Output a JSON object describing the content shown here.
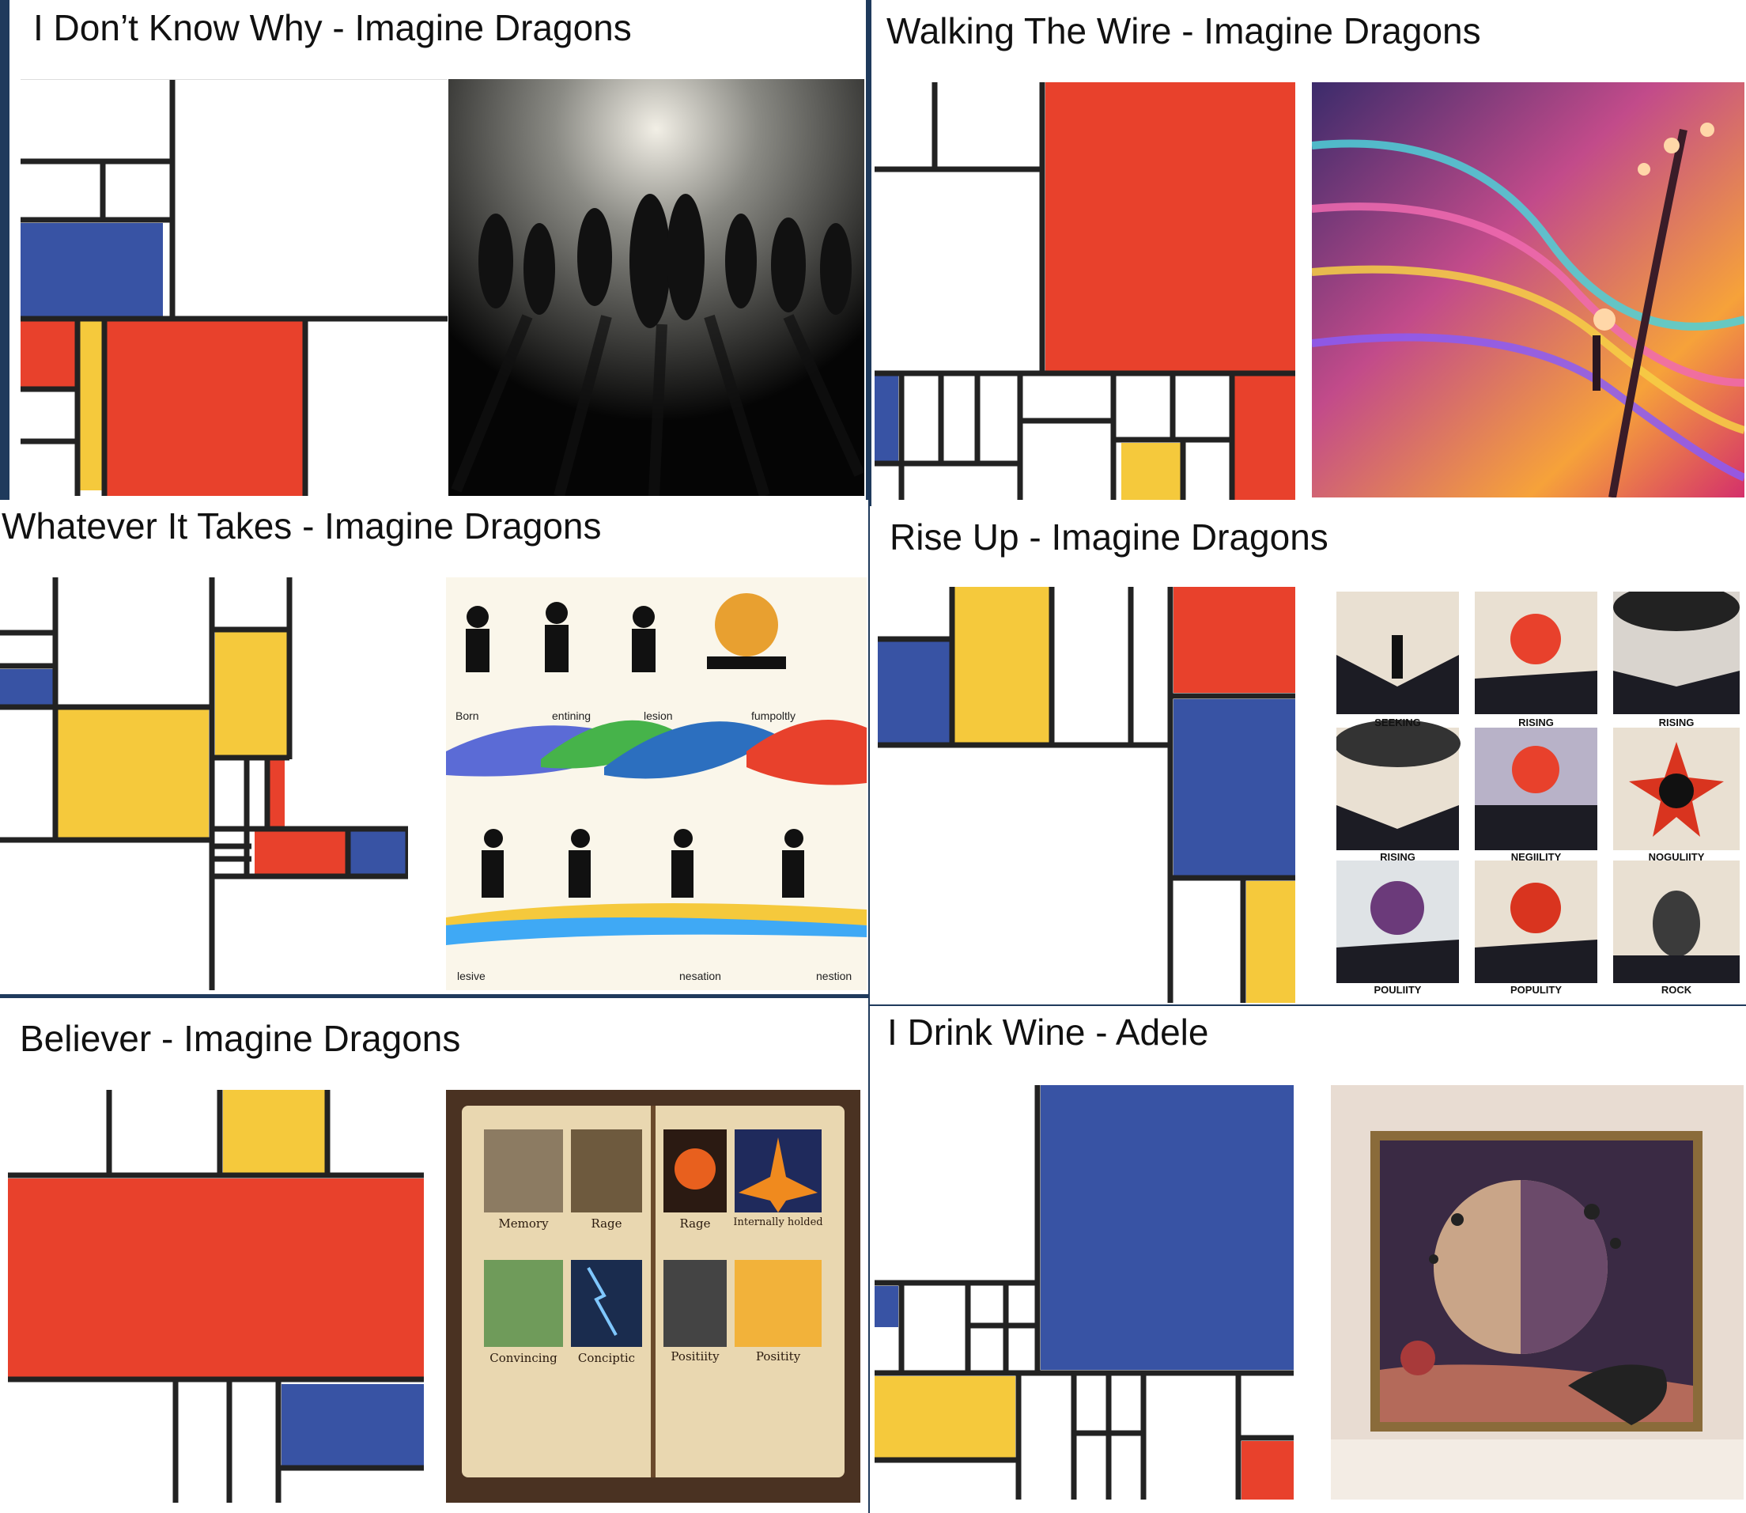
{
  "colors": {
    "red": "#e8412c",
    "blue": "#3853a4",
    "yellow": "#f5c93c",
    "white": "#ffffff",
    "line": "#222222"
  },
  "panels": [
    {
      "title": "I Don’t Know Why - Imagine Dragons"
    },
    {
      "title": "Walking The Wire - Imagine Dragons"
    },
    {
      "title": "Whatever It Takes - Imagine Dragons",
      "captions_top": [
        "Born",
        "entining",
        "lesion",
        "fumpoltly"
      ],
      "captions_bottom": [
        "lesive",
        "nesation",
        "nestion"
      ]
    },
    {
      "title": "Rise Up - Imagine Dragons",
      "tiles": [
        "SEEKING",
        "RISING",
        "RISING",
        "RISING",
        "NEGIILITY",
        "NOGULIITY",
        "POULIITY",
        "POPULITY",
        "ROCK"
      ]
    },
    {
      "title": "Believer - Imagine Dragons",
      "pages": [
        "Memory",
        "Rage",
        "Rage",
        "Internally holded",
        "Convincing",
        "Conciptic",
        "Positiity",
        "Positity"
      ]
    },
    {
      "title": "I Drink Wine - Adele"
    }
  ],
  "icons": {
    "silhouettes": "dancing-silhouettes-illustration",
    "wire": "hearts-tree-illustration",
    "whatever": "running-figures-illustration",
    "riseup": "tile-grid-illustration",
    "believer": "open-book-illustration",
    "wine": "framed-planet-illustration"
  }
}
